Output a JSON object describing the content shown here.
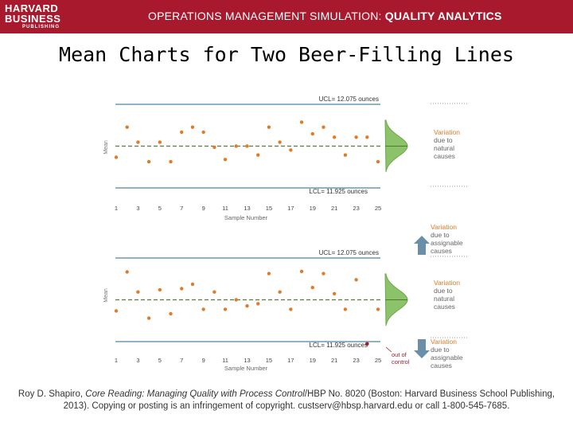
{
  "header": {
    "logo_line1": "HARVARD",
    "logo_line2": "BUSINESS",
    "logo_line3": "PUBLISHING",
    "title_normal": "OPERATIONS MANAGEMENT SIMULATION: ",
    "title_bold": "QUALITY ANALYTICS"
  },
  "slide": {
    "title": "Mean Charts for Two Beer-Filling Lines"
  },
  "caption": {
    "author": "Roy D. Shapiro, ",
    "work": "Core Reading: Managing Quality with Process Control",
    "rest1": "/HBP No. 8020 (Boston: Harvard Business School Publishing,",
    "rest2": "2013). Copying or posting is an infringement of copyright. custserv@hbsp.harvard.edu or call 1-800-545-7685."
  },
  "colors": {
    "header_bg": "#a8192e",
    "limit_line": "#8fb3c4",
    "points": "#e07b29",
    "out_of_control": "#a8192e",
    "center_line": "#5a7a3a",
    "bell_fill": "#8cc269",
    "arrow": "#6b8fa8",
    "annotation_text": "#e07b29"
  },
  "chart_data": [
    {
      "type": "scatter",
      "title": "",
      "xlabel": "Sample Number",
      "ylabel": "Mean",
      "xticks": [
        1,
        3,
        5,
        7,
        9,
        11,
        13,
        15,
        17,
        19,
        21,
        23,
        25
      ],
      "ylim": [
        11.92,
        12.08
      ],
      "ucl": 12.075,
      "lcl": 11.925,
      "ucl_label": "UCL= 12.075 ounces",
      "lcl_label": "LCL= 11.925 ounces",
      "points": [
        {
          "x": 1,
          "y": 11.98
        },
        {
          "x": 2,
          "y": 12.034
        },
        {
          "x": 3,
          "y": 12.007
        },
        {
          "x": 4,
          "y": 11.972
        },
        {
          "x": 5,
          "y": 12.007
        },
        {
          "x": 6,
          "y": 11.972
        },
        {
          "x": 7,
          "y": 12.025
        },
        {
          "x": 8,
          "y": 12.034
        },
        {
          "x": 9,
          "y": 12.025
        },
        {
          "x": 10,
          "y": 11.998
        },
        {
          "x": 11,
          "y": 11.976
        },
        {
          "x": 12,
          "y": 12.0
        },
        {
          "x": 13,
          "y": 12.0
        },
        {
          "x": 14,
          "y": 11.984
        },
        {
          "x": 15,
          "y": 12.034
        },
        {
          "x": 16,
          "y": 12.007
        },
        {
          "x": 17,
          "y": 11.993
        },
        {
          "x": 18,
          "y": 12.043
        },
        {
          "x": 19,
          "y": 12.022
        },
        {
          "x": 20,
          "y": 12.034
        },
        {
          "x": 21,
          "y": 12.016
        },
        {
          "x": 22,
          "y": 11.984
        },
        {
          "x": 23,
          "y": 12.016
        },
        {
          "x": 24,
          "y": 12.016
        },
        {
          "x": 25,
          "y": 11.972
        }
      ],
      "annotations": [
        {
          "text_lines": [
            "Variation",
            "due to",
            "natural",
            "causes"
          ]
        }
      ]
    },
    {
      "type": "scatter",
      "title": "",
      "xlabel": "Sample Number",
      "ylabel": "Mean",
      "xticks": [
        1,
        3,
        5,
        7,
        9,
        11,
        13,
        15,
        17,
        19,
        21,
        23,
        25
      ],
      "ylim": [
        11.92,
        12.08
      ],
      "ucl": 12.075,
      "lcl": 11.925,
      "ucl_label": "UCL= 12.075 ounces",
      "lcl_label": "LCL= 11.925 ounces",
      "points": [
        {
          "x": 1,
          "y": 11.98
        },
        {
          "x": 2,
          "y": 12.05
        },
        {
          "x": 3,
          "y": 12.014
        },
        {
          "x": 4,
          "y": 11.967
        },
        {
          "x": 5,
          "y": 12.018
        },
        {
          "x": 6,
          "y": 11.975
        },
        {
          "x": 7,
          "y": 12.02
        },
        {
          "x": 8,
          "y": 12.028
        },
        {
          "x": 9,
          "y": 11.983
        },
        {
          "x": 10,
          "y": 12.014
        },
        {
          "x": 11,
          "y": 11.983
        },
        {
          "x": 12,
          "y": 12.0
        },
        {
          "x": 13,
          "y": 11.989
        },
        {
          "x": 14,
          "y": 11.993
        },
        {
          "x": 15,
          "y": 12.047
        },
        {
          "x": 16,
          "y": 12.014
        },
        {
          "x": 17,
          "y": 11.983
        },
        {
          "x": 18,
          "y": 12.051
        },
        {
          "x": 19,
          "y": 12.022
        },
        {
          "x": 20,
          "y": 12.047
        },
        {
          "x": 21,
          "y": 12.011
        },
        {
          "x": 22,
          "y": 11.983
        },
        {
          "x": 23,
          "y": 12.036
        },
        {
          "x": 24,
          "y": 11.921
        },
        {
          "x": 25,
          "y": 11.983
        }
      ],
      "out_of_control_x": 24,
      "out_of_control_label": [
        "out of",
        "control"
      ],
      "annotations": [
        {
          "text_lines": [
            "Variation",
            "due to",
            "assignable",
            "causes"
          ]
        },
        {
          "text_lines": [
            "Variation",
            "due to",
            "natural",
            "causes"
          ]
        },
        {
          "text_lines": [
            "Variation",
            "due to",
            "assignable",
            "causes"
          ]
        }
      ]
    }
  ]
}
